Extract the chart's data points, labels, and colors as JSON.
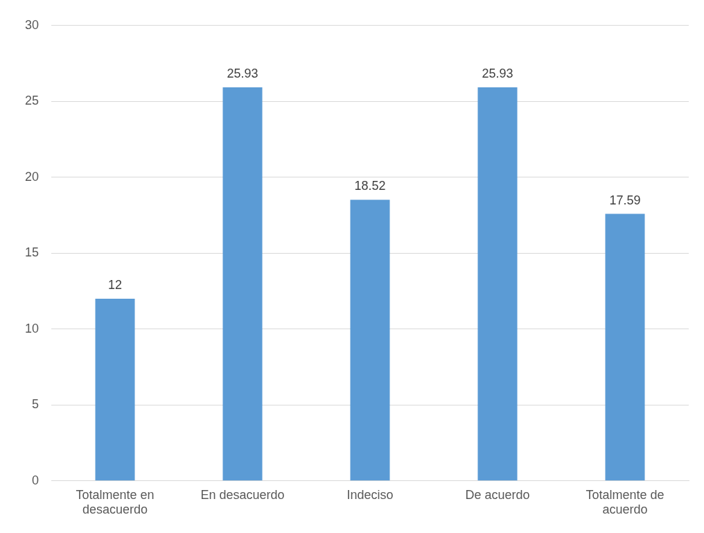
{
  "chart_data": {
    "type": "bar",
    "categories": [
      "Totalmente en desacuerdo",
      "En desacuerdo",
      "Indeciso",
      "De acuerdo",
      "Totalmente de acuerdo"
    ],
    "values": [
      12,
      25.93,
      18.52,
      25.93,
      17.59
    ],
    "color": "#5b9bd5",
    "ylim": [
      0,
      30
    ],
    "yticks": [
      0,
      5,
      10,
      15,
      20,
      25,
      30
    ],
    "grid": "y",
    "data_labels": true,
    "legend": false
  }
}
